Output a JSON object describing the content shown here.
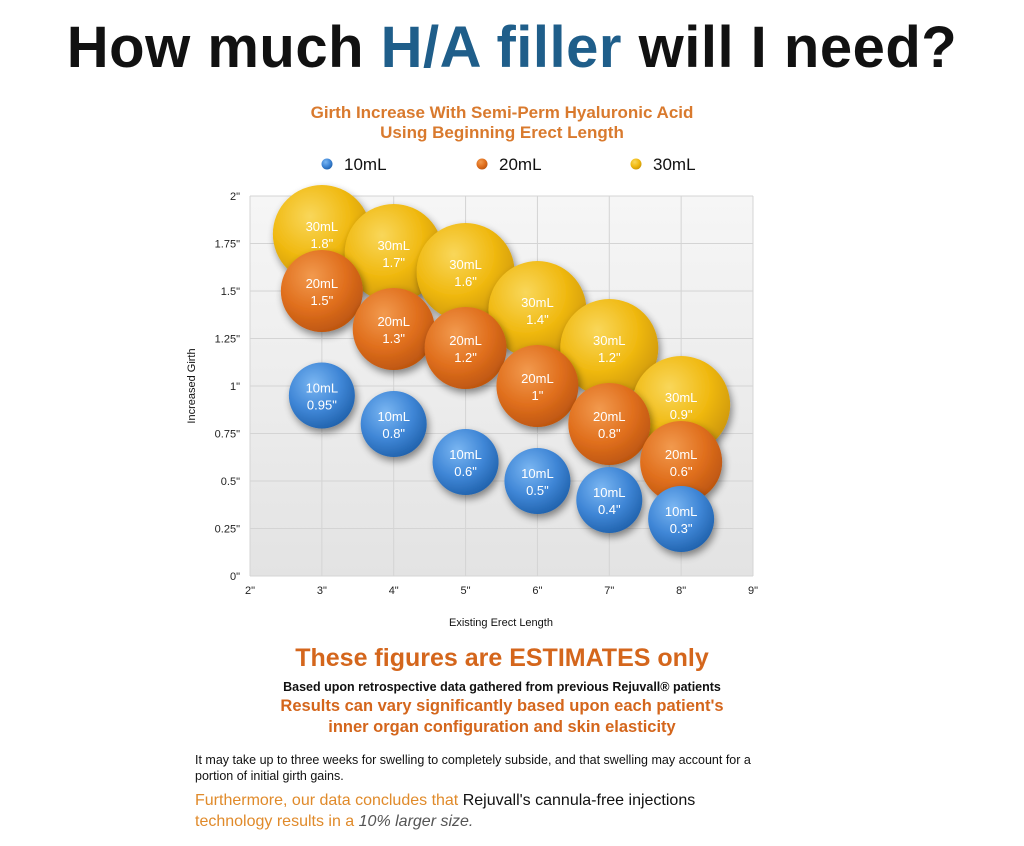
{
  "headline": {
    "part1": "How much ",
    "accent": "H/A filler",
    "part2": " will I need?"
  },
  "colors": {
    "accent_blue": "#1f5e8a",
    "orange_text": "#d4661c",
    "bubble_10mL": "#3f86d6",
    "bubble_20mL": "#e06f1d",
    "bubble_30mL": "#f0b911"
  },
  "chart_data": {
    "type": "scatter",
    "title": "Girth Increase With Semi-Perm Hyaluronic Acid",
    "subtitle": "Using Beginning Erect Length",
    "xlabel": "Existing Erect Length",
    "ylabel": "Increased Girth",
    "xlim": [
      2,
      9
    ],
    "ylim": [
      0,
      2
    ],
    "x_ticks": [
      2,
      3,
      4,
      5,
      6,
      7,
      8,
      9
    ],
    "x_tick_labels": [
      "2\"",
      "3\"",
      "4\"",
      "5\"",
      "6\"",
      "7\"",
      "8\"",
      "9\""
    ],
    "y_ticks": [
      0,
      0.25,
      0.5,
      0.75,
      1,
      1.25,
      1.5,
      1.75,
      2
    ],
    "y_tick_labels": [
      "0\"",
      "0.25\"",
      "0.5\"",
      "0.75\"",
      "1\"",
      "1.25\"",
      "1.5\"",
      "1.75\"",
      "2\""
    ],
    "grid": true,
    "legend_position": "top",
    "series": [
      {
        "name": "10mL",
        "color": "#3f86d6",
        "points": [
          {
            "x": 3,
            "y": 0.95,
            "label1": "10mL",
            "label2": "0.95\""
          },
          {
            "x": 4,
            "y": 0.8,
            "label1": "10mL",
            "label2": "0.8\""
          },
          {
            "x": 5,
            "y": 0.6,
            "label1": "10mL",
            "label2": "0.6\""
          },
          {
            "x": 6,
            "y": 0.5,
            "label1": "10mL",
            "label2": "0.5\""
          },
          {
            "x": 7,
            "y": 0.4,
            "label1": "10mL",
            "label2": "0.4\""
          },
          {
            "x": 8,
            "y": 0.3,
            "label1": "10mL",
            "label2": "0.3\""
          }
        ]
      },
      {
        "name": "20mL",
        "color": "#e06f1d",
        "points": [
          {
            "x": 3,
            "y": 1.5,
            "label1": "20mL",
            "label2": "1.5\""
          },
          {
            "x": 4,
            "y": 1.3,
            "label1": "20mL",
            "label2": "1.3\""
          },
          {
            "x": 5,
            "y": 1.2,
            "label1": "20mL",
            "label2": "1.2\""
          },
          {
            "x": 6,
            "y": 1,
            "label1": "20mL",
            "label2": "1\""
          },
          {
            "x": 7,
            "y": 0.8,
            "label1": "20mL",
            "label2": "0.8\""
          },
          {
            "x": 8,
            "y": 0.6,
            "label1": "20mL",
            "label2": "0.6\""
          }
        ]
      },
      {
        "name": "30mL",
        "color": "#f0b911",
        "points": [
          {
            "x": 3,
            "y": 1.8,
            "label1": "30mL",
            "label2": "1.8\""
          },
          {
            "x": 4,
            "y": 1.7,
            "label1": "30mL",
            "label2": "1.7\""
          },
          {
            "x": 5,
            "y": 1.6,
            "label1": "30mL",
            "label2": "1.6\""
          },
          {
            "x": 6,
            "y": 1.4,
            "label1": "30mL",
            "label2": "1.4\""
          },
          {
            "x": 7,
            "y": 1.2,
            "label1": "30mL",
            "label2": "1.2\""
          },
          {
            "x": 8,
            "y": 0.9,
            "label1": "30mL",
            "label2": "0.9\""
          }
        ]
      }
    ]
  },
  "disclaimer": {
    "estimates": "These figures are ESTIMATES only",
    "based": "Based upon retrospective data gathered from previous Rejuvall® patients",
    "results_line1": "Results can vary significantly based upon each patient's",
    "results_line2": "inner organ configuration and skin elasticity"
  },
  "note": {
    "line1": "It may take up to three weeks for swelling to completely subside, and that swelling may account for a",
    "line2": "portion of initial girth gains."
  },
  "furthermore": {
    "lead": "Furthermore, our data concludes that ",
    "claim": "Rejuvall's cannula-free injections",
    "line2_lead": "technology results in a ",
    "emphasis": "10% larger size."
  }
}
